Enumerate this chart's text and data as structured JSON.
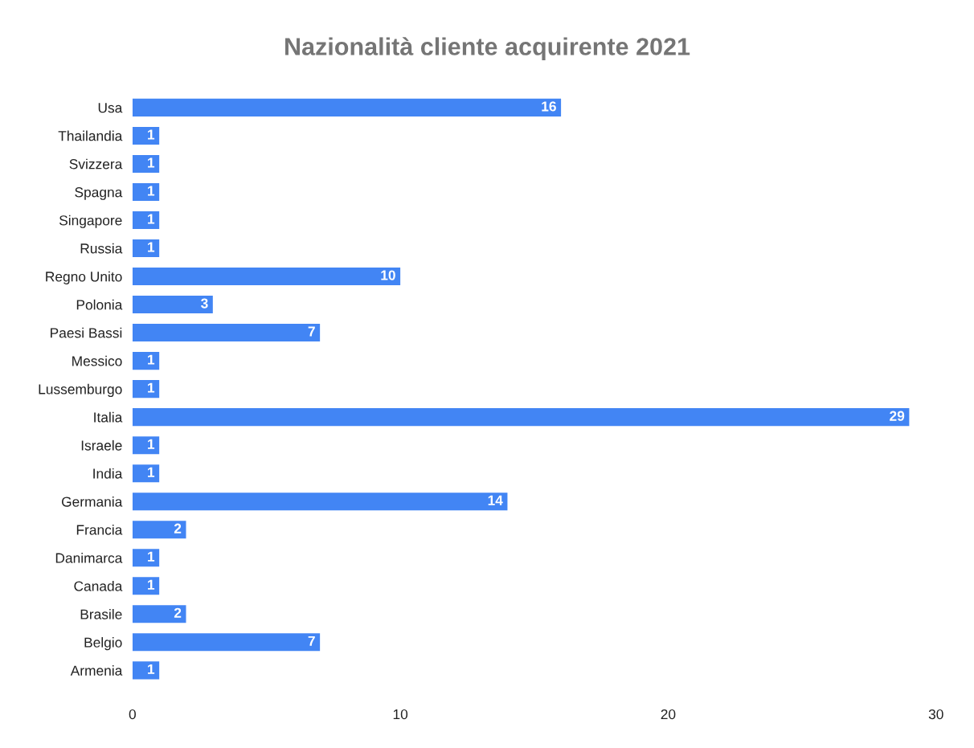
{
  "chart_data": {
    "type": "bar",
    "orientation": "horizontal",
    "title": "Nazionalità cliente acquirente 2021",
    "categories": [
      "Usa",
      "Thailandia",
      "Svizzera",
      "Spagna",
      "Singapore",
      "Russia",
      "Regno Unito",
      "Polonia",
      "Paesi Bassi",
      "Messico",
      "Lussemburgo",
      "Italia",
      "Israele",
      "India",
      "Germania",
      "Francia",
      "Danimarca",
      "Canada",
      "Brasile",
      "Belgio",
      "Armenia"
    ],
    "values": [
      16,
      1,
      1,
      1,
      1,
      1,
      10,
      3,
      7,
      1,
      1,
      29,
      1,
      1,
      14,
      2,
      1,
      1,
      2,
      7,
      1
    ],
    "color": "#4285f4",
    "xlim": [
      0,
      30
    ],
    "xticks": [
      0,
      10,
      20,
      30
    ],
    "grid": false,
    "legend": false,
    "data_labels": true
  }
}
